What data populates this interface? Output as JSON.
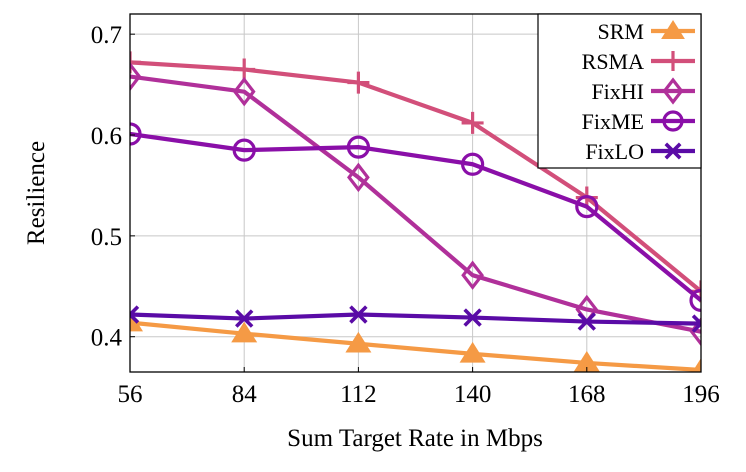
{
  "chart_data": {
    "type": "line",
    "xlabel": "Sum Target Rate in Mbps",
    "ylabel": "Resilience",
    "x": [
      56,
      84,
      112,
      140,
      168,
      196
    ],
    "xlim": [
      56,
      196
    ],
    "ylim": [
      0.365,
      0.72
    ],
    "xticks": [
      "56",
      "84",
      "112",
      "140",
      "168",
      "196"
    ],
    "yticks": [
      "0.4",
      "0.5",
      "0.6",
      "0.7"
    ],
    "grid": true,
    "legend_position": "top-right",
    "series": [
      {
        "name": "SRM",
        "color": "#f59a45",
        "marker": "triangle",
        "values": [
          0.414,
          0.403,
          0.393,
          0.383,
          0.374,
          0.367
        ]
      },
      {
        "name": "RSMA",
        "color": "#d24f7a",
        "marker": "plus",
        "values": [
          0.672,
          0.665,
          0.652,
          0.612,
          0.538,
          0.445
        ]
      },
      {
        "name": "FixHI",
        "color": "#b0309a",
        "marker": "diamond",
        "values": [
          0.658,
          0.643,
          0.558,
          0.461,
          0.427,
          0.405
        ]
      },
      {
        "name": "FixME",
        "color": "#8a0fa8",
        "marker": "circle",
        "values": [
          0.601,
          0.585,
          0.588,
          0.571,
          0.529,
          0.436
        ]
      },
      {
        "name": "FixLO",
        "color": "#5a0ba6",
        "marker": "cross",
        "values": [
          0.422,
          0.418,
          0.422,
          0.419,
          0.415,
          0.413
        ]
      }
    ]
  }
}
